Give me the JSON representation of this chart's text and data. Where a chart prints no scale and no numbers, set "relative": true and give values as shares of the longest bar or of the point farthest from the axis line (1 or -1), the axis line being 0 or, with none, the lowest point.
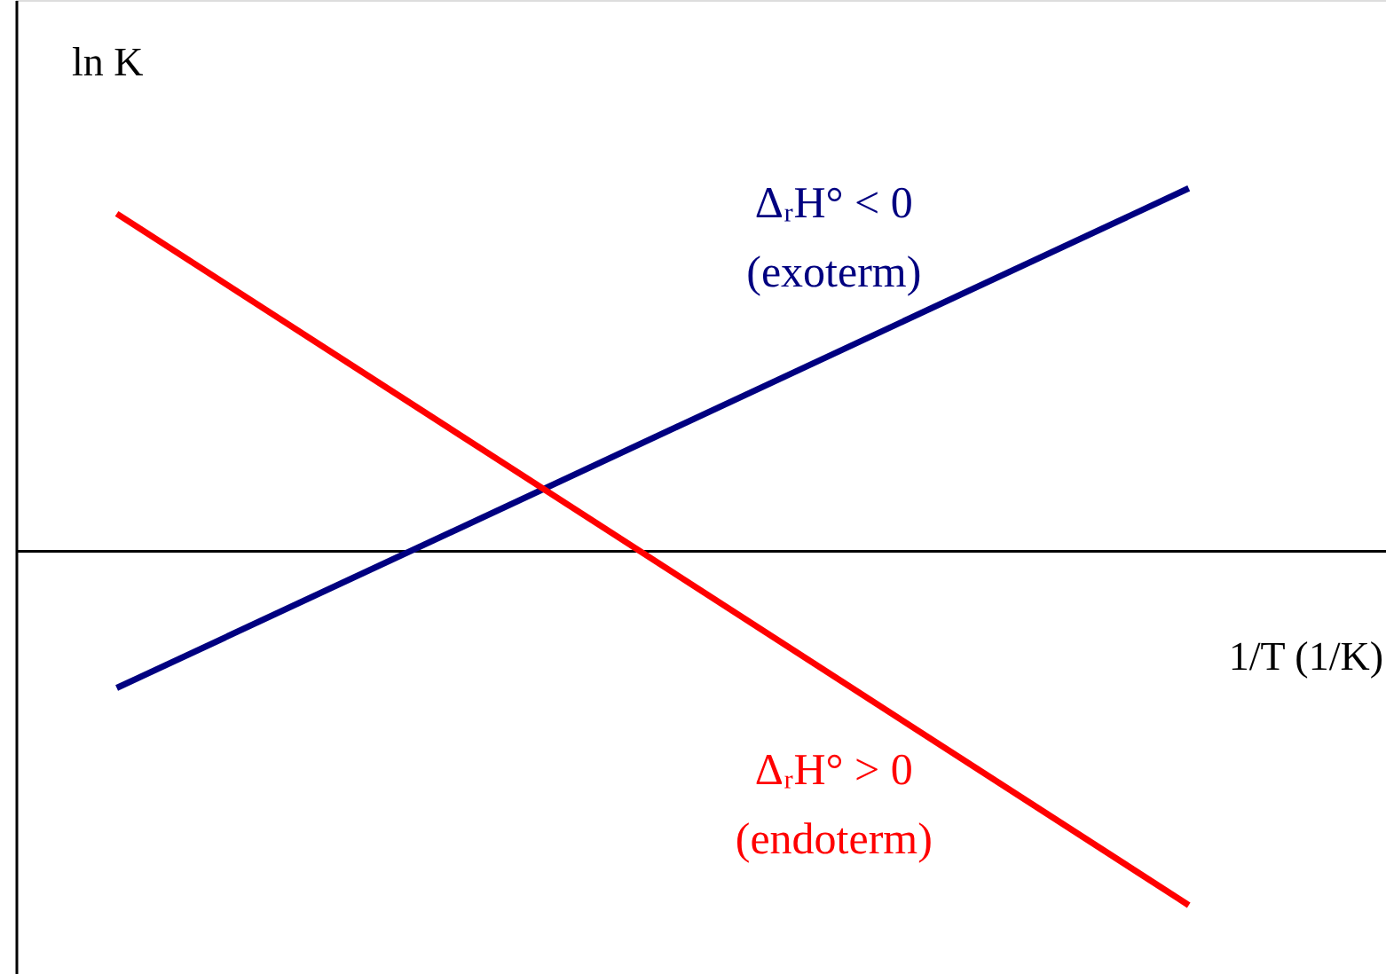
{
  "chart_data": {
    "type": "line",
    "relative": true,
    "xlabel": "1/T (1/K)",
    "ylabel": "ln K",
    "categories": [
      null,
      null
    ],
    "series": [
      {
        "name": "ΔᵣH° < 0\n(exoterm)",
        "color": "#000080",
        "values": [
          -0.38,
          1
        ]
      },
      {
        "name": "ΔᵣH° > 0\n(endoterm)",
        "color": "#ff0000",
        "values": [
          0.93,
          -0.98
        ]
      }
    ]
  }
}
